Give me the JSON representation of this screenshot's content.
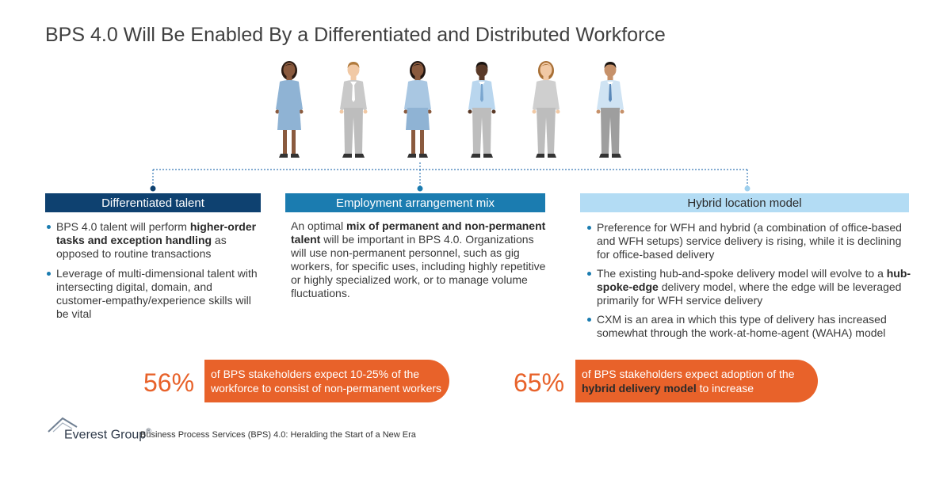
{
  "title": "BPS 4.0 Will Be Enabled By a Differentiated and Distributed Workforce",
  "columns": [
    {
      "header": "Differentiated talent",
      "bullets": [
        [
          {
            "t": "BPS 4.0 talent will perform "
          },
          {
            "t": "higher-order tasks and exception handling",
            "b": true
          },
          {
            "t": " as opposed to routine transactions"
          }
        ],
        [
          {
            "t": "Leverage of multi-dimensional talent with intersecting digital, domain, and customer-empathy/experience skills will be vital"
          }
        ]
      ]
    },
    {
      "header": "Employment arrangement mix",
      "paragraph": [
        {
          "t": "An optimal "
        },
        {
          "t": "mix of permanent and non-permanent talent",
          "b": true
        },
        {
          "t": " will be important in BPS 4.0. Organizations will use non-permanent personnel, such as gig workers, for specific uses, including highly repetitive or highly specialized work, or to manage volume fluctuations."
        }
      ]
    },
    {
      "header": "Hybrid location model",
      "bullets": [
        [
          {
            "t": "Preference for WFH and hybrid (a combination of office-based and WFH setups) service delivery is rising, while it is declining for office-based delivery"
          }
        ],
        [
          {
            "t": "The existing hub-and-spoke delivery model will evolve to a "
          },
          {
            "t": "hub-spoke-edge",
            "b": true
          },
          {
            "t": " delivery model, where the edge will be leveraged primarily for WFH service delivery"
          }
        ],
        [
          {
            "t": "CXM is an area in which this type of delivery has increased somewhat through the work-at-home-agent (WAHA) model"
          }
        ]
      ]
    }
  ],
  "stats": [
    {
      "value": "56%",
      "text": [
        {
          "t": "of BPS stakeholders expect 10-25% of the workforce to consist of non-permanent workers"
        }
      ]
    },
    {
      "value": "65%",
      "text": [
        {
          "t": "of BPS stakeholders expect adoption of the "
        },
        {
          "t": "hybrid delivery model",
          "b": true
        },
        {
          "t": " to increase"
        }
      ]
    }
  ],
  "footer": {
    "logo": "Everest Group",
    "logo_mark": "®",
    "text": "Business Process Services (BPS) 4.0: Heralding the Start of a New Era"
  },
  "colors": {
    "navy": "#0e4170",
    "blue": "#1b7cb0",
    "light_blue": "#b3dcf4",
    "orange": "#e8622a"
  },
  "people": [
    {
      "type": "female",
      "top": "#8fb3d4",
      "bottom": "#8fb3d4",
      "hair": "#2a1a12",
      "skin": "#8a5a3e"
    },
    {
      "type": "male",
      "top": "#c9c9c9",
      "bottom": "#bdbdbd",
      "hair": "#b07a3c",
      "skin": "#f1c9a5",
      "tie": "#ffffff"
    },
    {
      "type": "female",
      "top": "#a9c7e2",
      "bottom": "#8fb3d4",
      "hair": "#1f1410",
      "skin": "#8a5a3e"
    },
    {
      "type": "male",
      "top": "#b9d6ee",
      "bottom": "#bdbdbd",
      "hair": "#1a1410",
      "skin": "#5a3a28",
      "tie": "#7aa6cf"
    },
    {
      "type": "female",
      "top": "#cfcfcf",
      "bottom": "#bdbdbd",
      "hair": "#a86f35",
      "skin": "#f1c9a5"
    },
    {
      "type": "male",
      "top": "#cfe3f3",
      "bottom": "#9e9e9e",
      "hair": "#1a1410",
      "skin": "#c6916a",
      "tie": "#5a88b8"
    }
  ]
}
